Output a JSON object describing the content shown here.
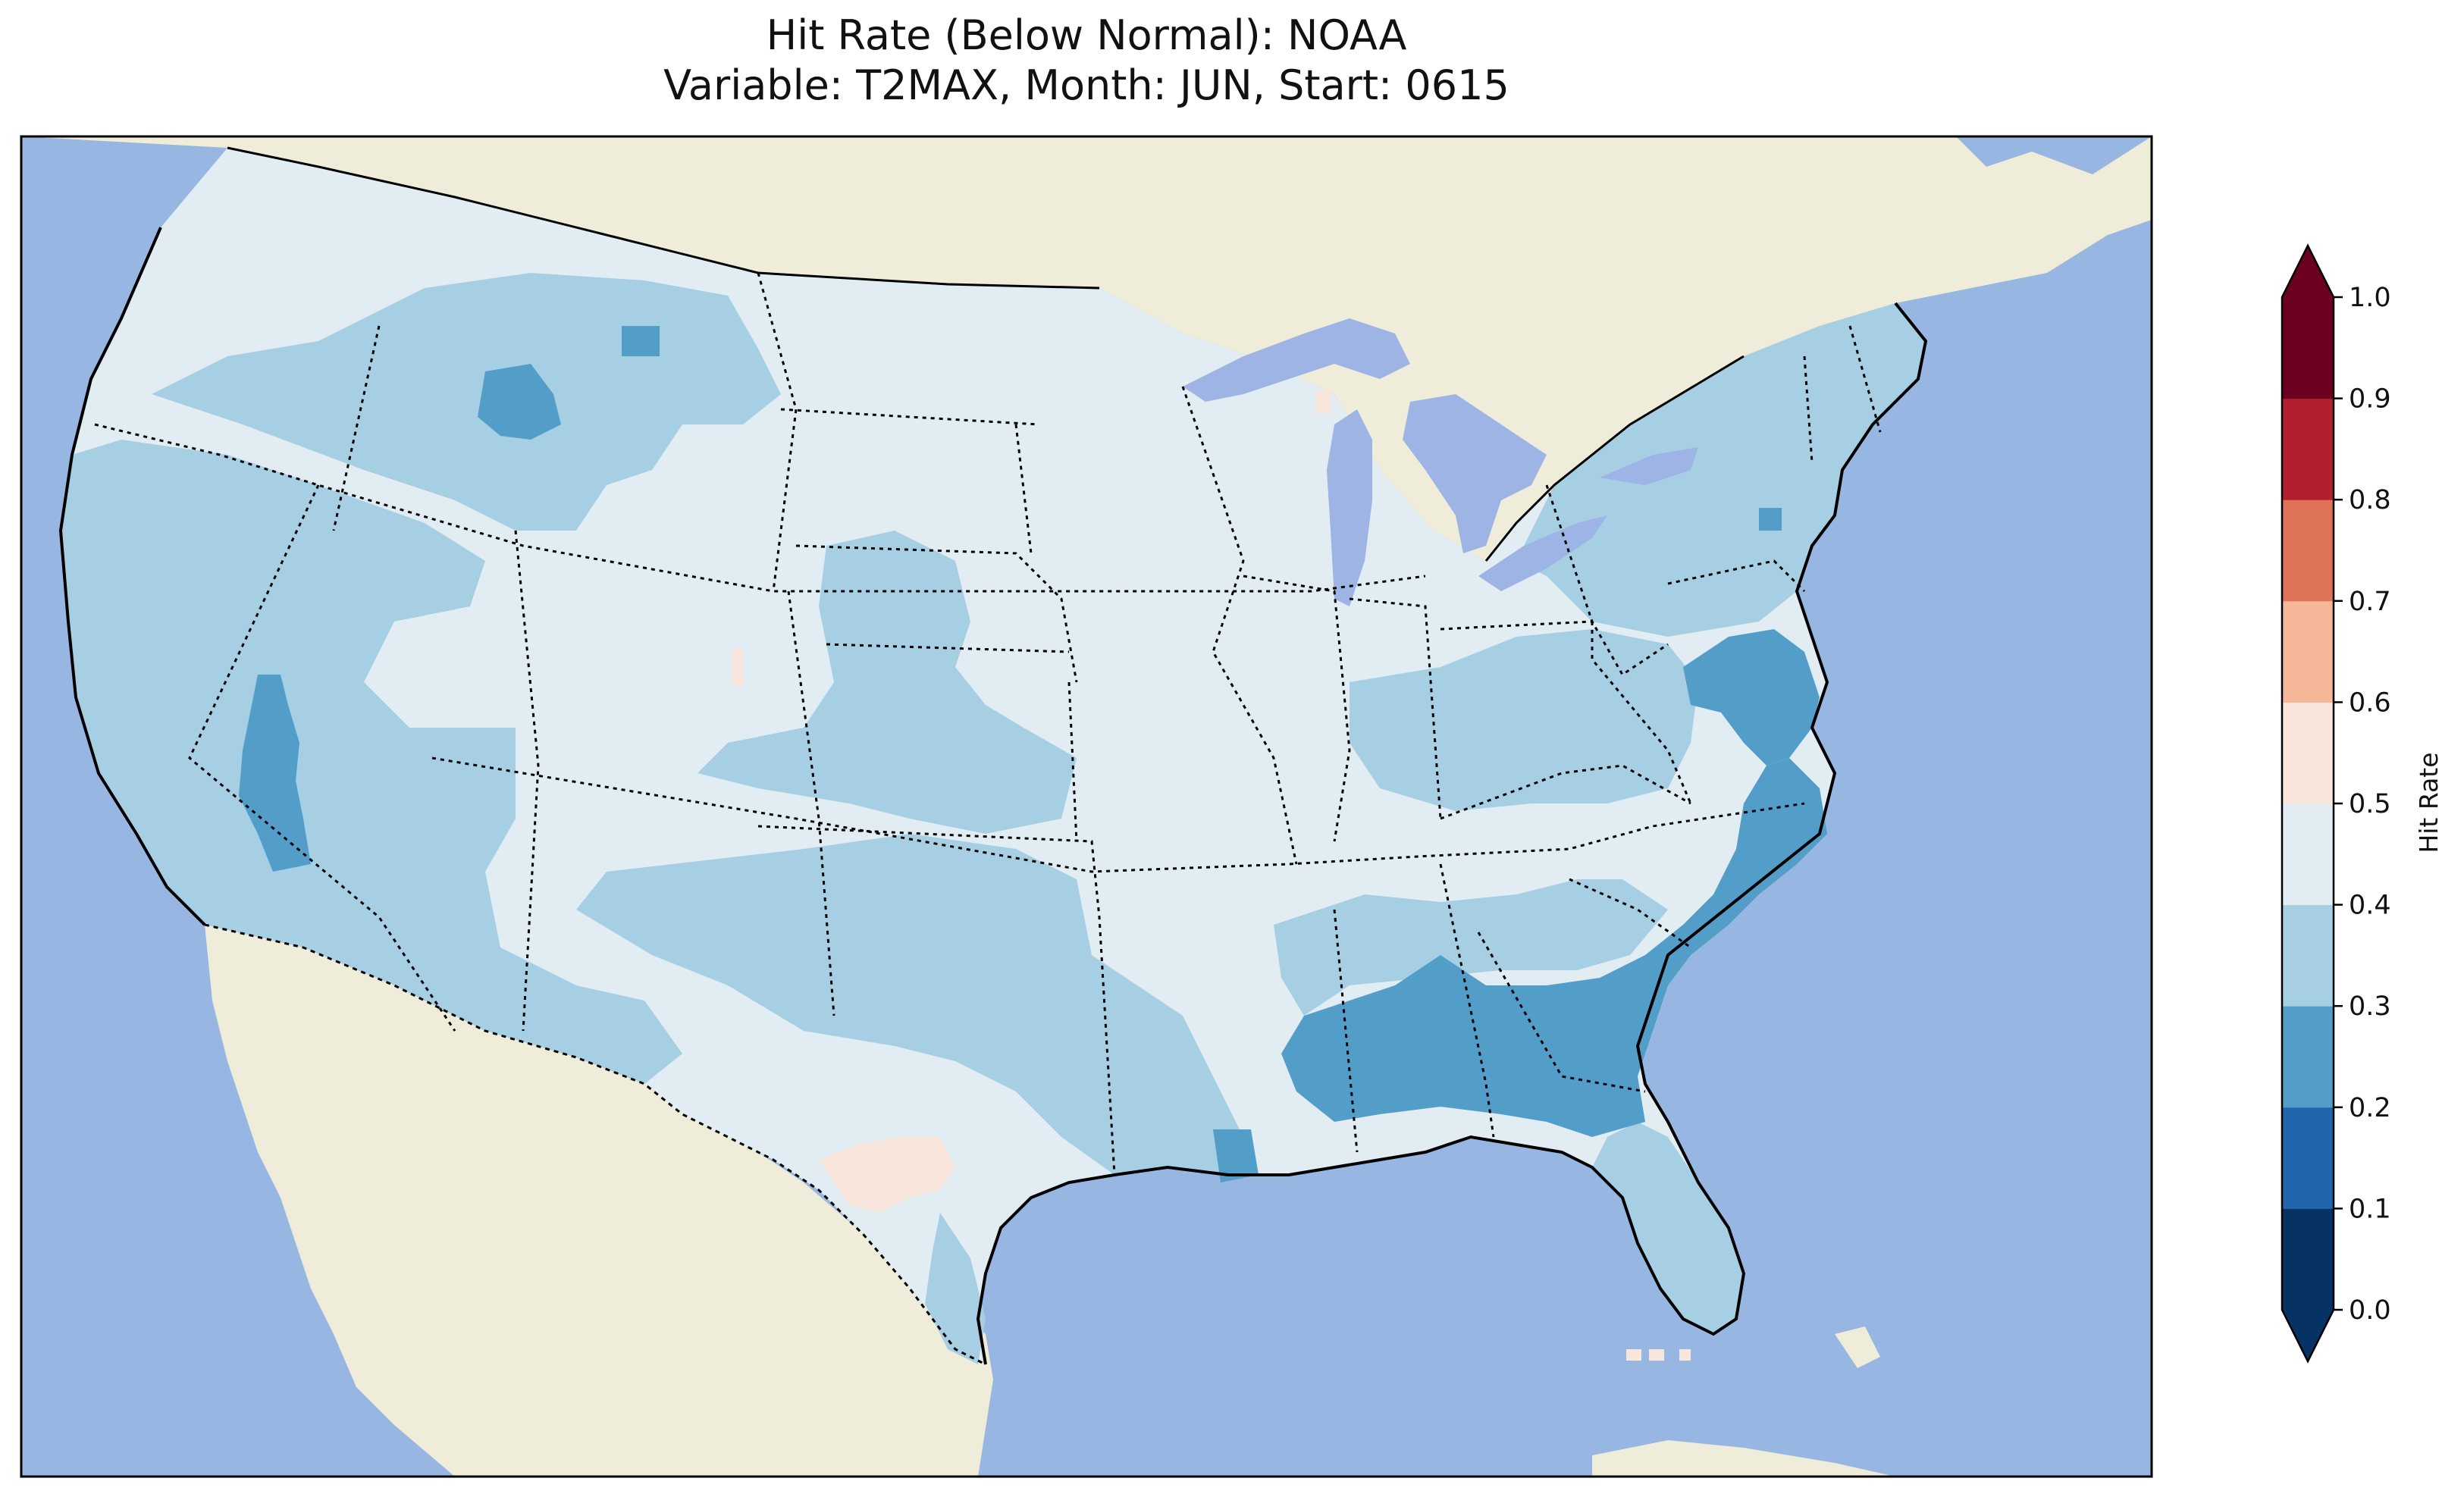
{
  "title": {
    "line1": "Hit Rate (Below Normal): NOAA",
    "line2": "Variable: T2MAX, Month: JUN, Start: 0615"
  },
  "colors": {
    "ocean": "#97b6e1",
    "land": "#efedd9",
    "lake": "#9db4e4",
    "bin_0_1": "#063264",
    "bin_1_2": "#2166ac",
    "bin_2_3": "#539dc9",
    "bin_3_4": "#a6cfe4",
    "bin_4_5": "#e1ecf3",
    "bin_5_6": "#f8e6dc",
    "bin_6_7": "#f6b698",
    "bin_7_8": "#df735a",
    "bin_8_9": "#b3202d",
    "bin_9_10": "#6b0020"
  },
  "map": {
    "domain": "contiguous-united-states",
    "overlay": "state-boundaries-dotted",
    "dominant_bin": "0.4-0.5",
    "regions": [
      {
        "name": "pacific-coast",
        "bin": "0.3-0.4"
      },
      {
        "name": "great-basin",
        "bin": "0.3-0.4"
      },
      {
        "name": "northern-rockies",
        "bin": "0.3-0.4"
      },
      {
        "name": "northern-plains",
        "bin": "0.4-0.5"
      },
      {
        "name": "central-plains",
        "bin": "0.4-0.5"
      },
      {
        "name": "midwest",
        "bin": "0.4-0.5"
      },
      {
        "name": "northeast",
        "bin": "0.3-0.4"
      },
      {
        "name": "mid-atlantic-coast",
        "bin": "0.2-0.3"
      },
      {
        "name": "carolinas-coast",
        "bin": "0.2-0.3"
      },
      {
        "name": "deep-south",
        "bin": "0.2-0.3"
      },
      {
        "name": "florida",
        "bin": "0.3-0.4"
      },
      {
        "name": "southern-texas",
        "bin": "0.4-0.5"
      },
      {
        "name": "west-texas-patch",
        "bin": "0.5-0.6"
      }
    ]
  },
  "colorbar": {
    "label": "Hit Rate",
    "min": 0.0,
    "max": 1.0,
    "extend": "both",
    "ticks": [
      "0.0",
      "0.1",
      "0.2",
      "0.3",
      "0.4",
      "0.5",
      "0.6",
      "0.7",
      "0.8",
      "0.9",
      "1.0"
    ],
    "bins": [
      {
        "range": "0.0-0.1",
        "color": "#063264"
      },
      {
        "range": "0.1-0.2",
        "color": "#2166ac"
      },
      {
        "range": "0.2-0.3",
        "color": "#539dc9"
      },
      {
        "range": "0.3-0.4",
        "color": "#a6cfe4"
      },
      {
        "range": "0.4-0.5",
        "color": "#e1ecf3"
      },
      {
        "range": "0.5-0.6",
        "color": "#f8e6dc"
      },
      {
        "range": "0.6-0.7",
        "color": "#f6b698"
      },
      {
        "range": "0.7-0.8",
        "color": "#df735a"
      },
      {
        "range": "0.8-0.9",
        "color": "#b3202d"
      },
      {
        "range": "0.9-1.0",
        "color": "#6b0020"
      }
    ],
    "under_color": "#063264",
    "over_color": "#6b0020"
  }
}
